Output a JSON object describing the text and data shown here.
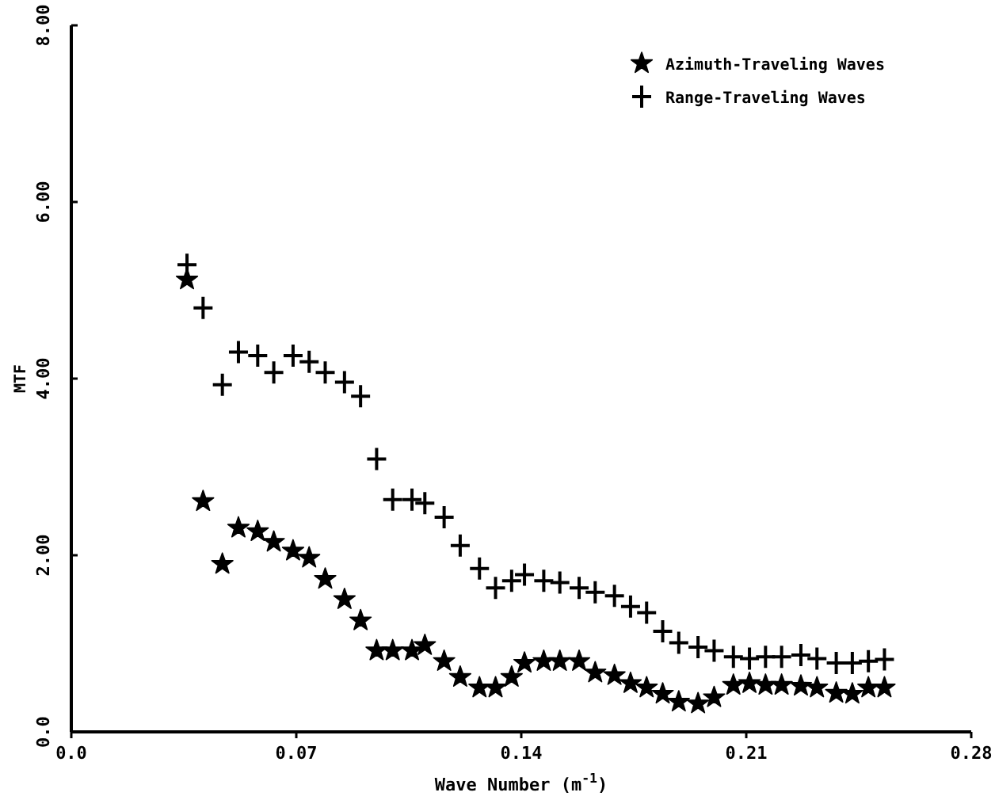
{
  "chart_data": {
    "type": "scatter",
    "xlabel": "Wave Number (m$^{-1}$)",
    "ylabel": "MTF",
    "x": [
      0.036,
      0.041,
      0.047,
      0.052,
      0.058,
      0.063,
      0.069,
      0.074,
      0.079,
      0.085,
      0.09,
      0.095,
      0.1,
      0.106,
      0.11,
      0.116,
      0.121,
      0.127,
      0.132,
      0.137,
      0.141,
      0.147,
      0.152,
      0.158,
      0.163,
      0.169,
      0.174,
      0.179,
      0.184,
      0.189,
      0.195,
      0.2,
      0.206,
      0.211,
      0.216,
      0.221,
      0.227,
      0.232,
      0.238,
      0.243,
      0.248,
      0.253
    ],
    "series": [
      {
        "name": "Azimuth-Traveling Waves",
        "color": "#000000",
        "marker": "star",
        "values": [
          5.12,
          2.61,
          1.9,
          2.31,
          2.27,
          2.15,
          2.05,
          1.97,
          1.73,
          1.5,
          1.26,
          0.92,
          0.92,
          0.92,
          0.98,
          0.8,
          0.62,
          0.5,
          0.5,
          0.62,
          0.78,
          0.8,
          0.8,
          0.8,
          0.67,
          0.64,
          0.55,
          0.5,
          0.43,
          0.34,
          0.32,
          0.39,
          0.53,
          0.55,
          0.53,
          0.53,
          0.52,
          0.5,
          0.44,
          0.43,
          0.5,
          0.5
        ]
      },
      {
        "name": "Range-Traveling Waves",
        "color": "#000000",
        "marker": "cross",
        "values": [
          5.29,
          4.8,
          3.93,
          4.3,
          4.26,
          4.07,
          4.26,
          4.19,
          4.07,
          3.96,
          3.8,
          3.09,
          2.63,
          2.63,
          2.59,
          2.43,
          2.11,
          1.85,
          1.63,
          1.71,
          1.78,
          1.71,
          1.69,
          1.63,
          1.58,
          1.54,
          1.42,
          1.35,
          1.14,
          1.01,
          0.96,
          0.92,
          0.85,
          0.83,
          0.85,
          0.85,
          0.87,
          0.83,
          0.78,
          0.78,
          0.8,
          0.82
        ]
      }
    ],
    "xlim": [
      0,
      0.28
    ],
    "xticks": [
      {
        "value": 0,
        "label": "0.0"
      },
      0.07,
      0.14,
      0.21,
      0.28
    ],
    "ylim": [
      0,
      8
    ],
    "yticks": [
      {
        "value": 0,
        "label": "0.0"
      },
      {
        "value": 2,
        "label": "2.00"
      },
      {
        "value": 4,
        "label": "4.00"
      },
      {
        "value": 6,
        "label": "6.00"
      },
      {
        "value": 8,
        "label": "8.00"
      }
    ],
    "grid": false,
    "legend": "top right"
  }
}
